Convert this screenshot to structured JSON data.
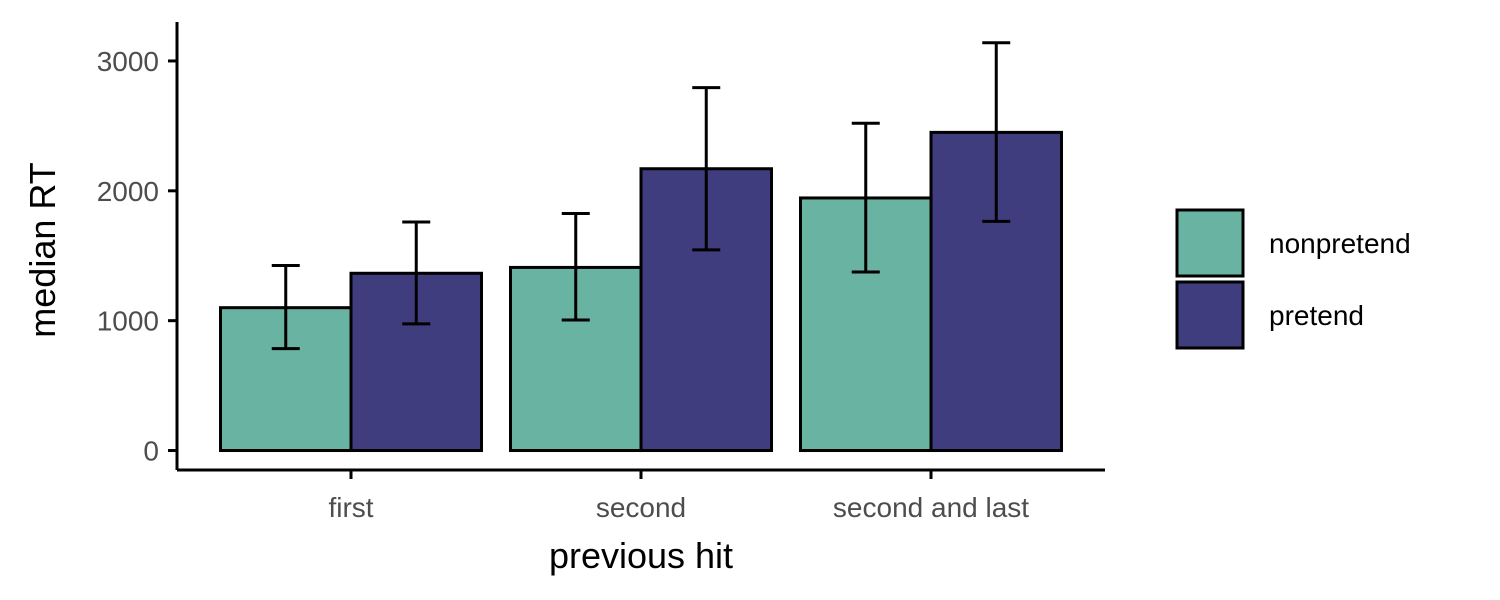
{
  "chart_data": {
    "type": "bar",
    "title": "",
    "xlabel": "previous hit",
    "ylabel": "median RT",
    "categories": [
      "first",
      "second",
      "second and last"
    ],
    "series": [
      {
        "name": "nonpretend",
        "color": "#69b3a2",
        "values": [
          1100,
          1410,
          1945
        ],
        "error_low": [
          785,
          1005,
          1375
        ],
        "error_high": [
          1425,
          1825,
          2520
        ]
      },
      {
        "name": "pretend",
        "color": "#403d7e",
        "values": [
          1365,
          2170,
          2450
        ],
        "error_low": [
          975,
          1545,
          1765
        ],
        "error_high": [
          1760,
          2795,
          3140
        ]
      }
    ],
    "yticks": [
      0,
      1000,
      2000,
      3000
    ],
    "ylim": [
      -150,
      3300
    ],
    "grid": false,
    "legend_position": "right"
  }
}
